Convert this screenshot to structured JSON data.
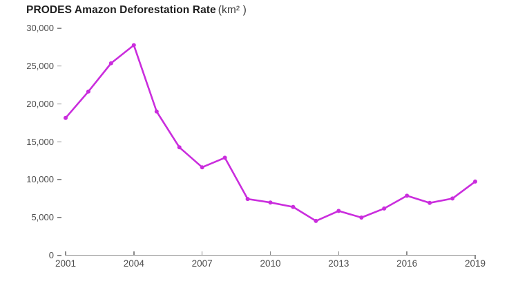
{
  "header": {
    "title": "PRODES Amazon Deforestation Rate",
    "unit": "(km² )"
  },
  "colors": {
    "line": "#ca2ddd",
    "axis": "#8a8a8a",
    "tick_label": "#4d4d4d",
    "title": "#1f1f1f",
    "unit": "#3a3a3a",
    "background": "#ffffff"
  },
  "chart_data": {
    "type": "line",
    "title": "PRODES Amazon Deforestation Rate (km²)",
    "xlabel": "",
    "ylabel": "",
    "grid": false,
    "legend_position": "none",
    "marker": "dot",
    "x": [
      2001,
      2002,
      2003,
      2004,
      2005,
      2006,
      2007,
      2008,
      2009,
      2010,
      2011,
      2012,
      2013,
      2014,
      2015,
      2016,
      2017,
      2018,
      2019
    ],
    "values": [
      18165,
      21650,
      25396,
      27772,
      19014,
      14286,
      11651,
      12911,
      7464,
      7000,
      6418,
      4571,
      5891,
      5012,
      6207,
      7893,
      6947,
      7536,
      9762
    ],
    "xlim": [
      2001,
      2019
    ],
    "ylim": [
      0,
      30000
    ],
    "xticks": [
      2001,
      2004,
      2007,
      2010,
      2013,
      2016,
      2019
    ],
    "xtick_labels": [
      "2001",
      "2004",
      "2007",
      "2010",
      "2013",
      "2016",
      "2019"
    ],
    "yticks": [
      0,
      5000,
      10000,
      15000,
      20000,
      25000,
      30000
    ],
    "ytick_labels": [
      "0",
      "5,000",
      "10,000",
      "15,000",
      "20,000",
      "25,000",
      "30,000"
    ]
  }
}
